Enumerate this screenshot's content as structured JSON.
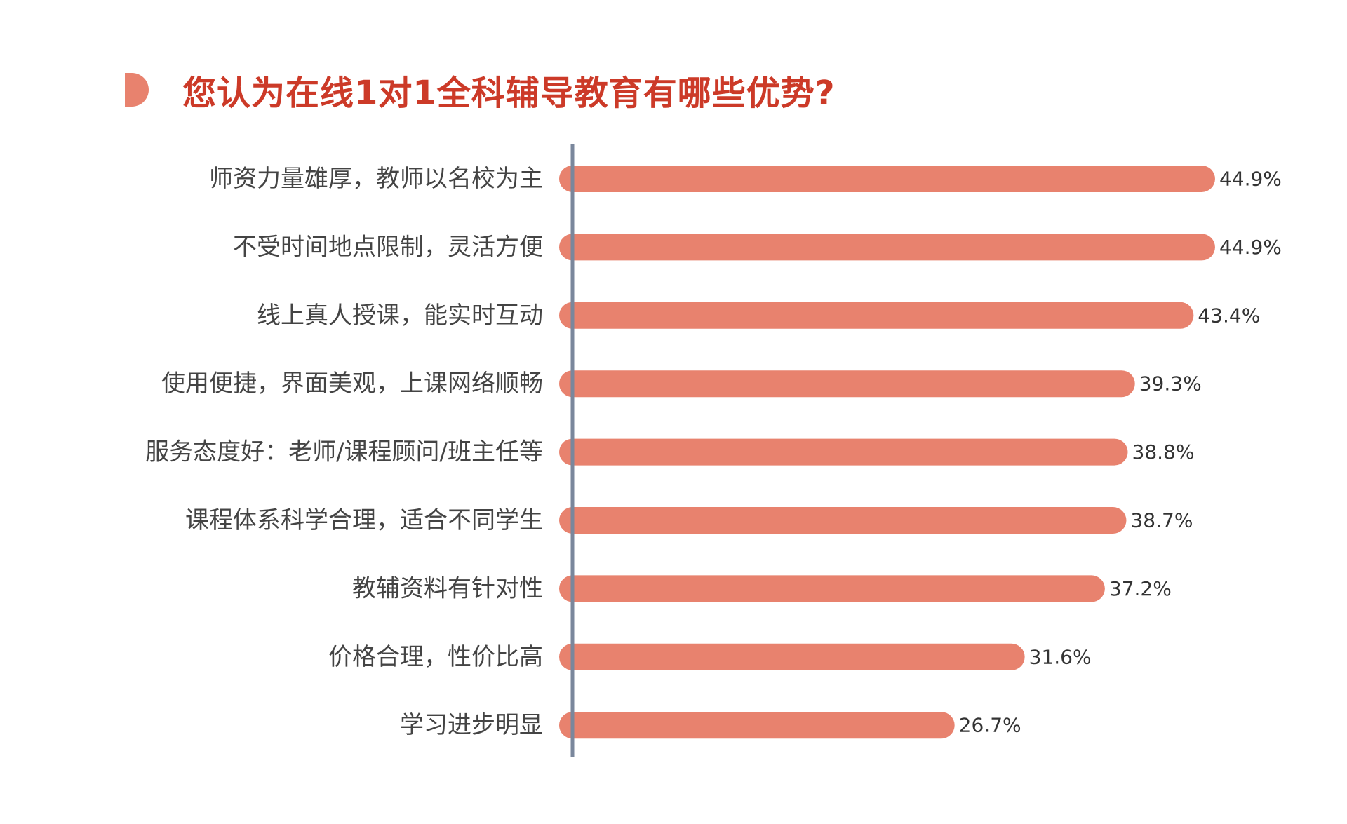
{
  "title": "您认为在线1对1全科辅导教育有哪些优势?",
  "colors": {
    "bar": "#e8826e",
    "title": "#cc3a28",
    "marker": "#e8826e",
    "axis": "#7a879c",
    "label": "#444444"
  },
  "chart_data": {
    "type": "bar",
    "orientation": "horizontal",
    "categories": [
      "师资力量雄厚，教师以名校为主",
      "不受时间地点限制，灵活方便",
      "线上真人授课，能实时互动",
      "使用便捷，界面美观，上课网络顺畅",
      "服务态度好：老师/课程顾问/班主任等",
      "课程体系科学合理，适合不同学生",
      "教辅资料有针对性",
      "价格合理，性价比高",
      "学习进步明显"
    ],
    "values": [
      44.9,
      44.9,
      43.4,
      39.3,
      38.8,
      38.7,
      37.2,
      31.6,
      26.7
    ],
    "value_labels": [
      "44.9%",
      "44.9%",
      "43.4%",
      "39.3%",
      "38.8%",
      "38.7%",
      "37.2%",
      "31.6%",
      "26.7%"
    ],
    "xlim": [
      0,
      50
    ],
    "grid": false,
    "legend": "none"
  }
}
